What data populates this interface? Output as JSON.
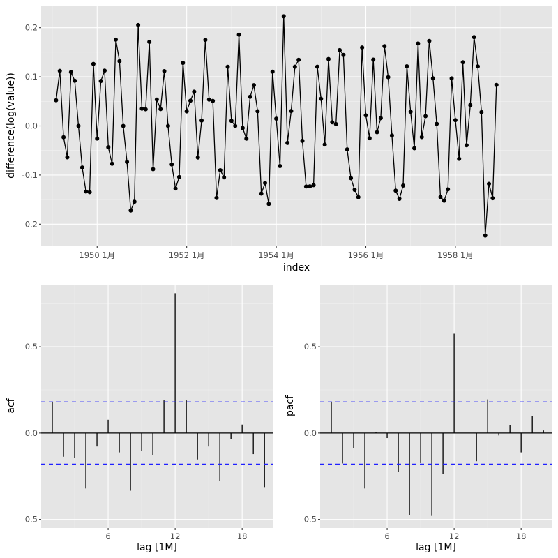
{
  "chart_data": [
    {
      "type": "line",
      "panel": "top",
      "title": "",
      "xlabel": "index",
      "ylabel": "difference(log(value))",
      "x_start": "1949-02",
      "x_end": "1958-12",
      "frequency": "monthly",
      "xlim": [
        "1948-10",
        "1960-03"
      ],
      "ylim": [
        -0.245,
        0.245
      ],
      "yticks": [
        -0.2,
        -0.1,
        0.0,
        0.1,
        0.2
      ],
      "ytick_labels": [
        "-0.2",
        "-0.1",
        "0.0",
        "0.1",
        "0.2"
      ],
      "xticks": [
        "1950-01",
        "1952-01",
        "1954-01",
        "1956-01",
        "1958-01"
      ],
      "xtick_labels": [
        "1950  1月",
        "1952  1月",
        "1954  1月",
        "1956  1月",
        "1958  1月"
      ],
      "grid": true,
      "markers": true,
      "values": [
        0.0522,
        0.1121,
        -0.023,
        -0.064,
        0.1095,
        0.0919,
        0.0,
        -0.0846,
        -0.1335,
        -0.1347,
        0.1263,
        -0.0258,
        0.0914,
        0.1125,
        -0.0435,
        -0.077,
        0.1756,
        0.1319,
        0.0,
        -0.0732,
        -0.1722,
        -0.1542,
        0.2054,
        0.0351,
        0.0339,
        0.1712,
        -0.088,
        0.0537,
        0.0343,
        0.1115,
        0.0,
        -0.0784,
        -0.1273,
        -0.104,
        0.1284,
        0.0297,
        0.0513,
        0.0697,
        -0.0642,
        0.011,
        0.175,
        0.0536,
        0.0509,
        -0.1466,
        -0.0901,
        -0.1048,
        0.1204,
        0.0103,
        0.0,
        0.1857,
        -0.0043,
        -0.0259,
        0.0593,
        0.0829,
        0.0299,
        -0.1377,
        -0.1162,
        -0.1589,
        0.1104,
        0.0148,
        -0.0817,
        0.2231,
        -0.0346,
        0.0304,
        0.1206,
        0.1345,
        -0.0303,
        -0.1233,
        -0.1231,
        -0.1205,
        0.1205,
        0.0552,
        -0.0379,
        0.1362,
        0.0075,
        0.0037,
        0.1542,
        0.1446,
        -0.0478,
        -0.1063,
        -0.1299,
        -0.1451,
        0.1596,
        0.0214,
        -0.025,
        0.1349,
        -0.0127,
        0.0159,
        0.1622,
        0.0992,
        -0.0196,
        -0.1318,
        -0.1485,
        -0.1215,
        0.1215,
        0.029,
        -0.0455,
        0.1678,
        -0.0227,
        0.0199,
        0.1729,
        0.097,
        0.0043,
        -0.1449,
        -0.1521,
        -0.129,
        0.0968,
        0.0118,
        -0.0669,
        0.1296,
        -0.0395,
        0.0422,
        0.1807,
        0.1212,
        0.0281,
        -0.2231,
        -0.1178,
        -0.1471,
        0.0835
      ]
    },
    {
      "type": "bar",
      "subtype": "acf-spikes",
      "panel": "bottom-left",
      "title": "",
      "xlabel": "lag [1M]",
      "ylabel": "acf",
      "lags": [
        1,
        2,
        3,
        4,
        5,
        6,
        7,
        8,
        9,
        10,
        11,
        12,
        13,
        14,
        15,
        16,
        17,
        18,
        19,
        20
      ],
      "values": [
        0.179,
        -0.137,
        -0.142,
        -0.321,
        -0.078,
        0.077,
        -0.112,
        -0.334,
        -0.105,
        -0.126,
        0.189,
        0.81,
        0.189,
        -0.153,
        -0.078,
        -0.277,
        -0.036,
        0.049,
        -0.122,
        -0.313
      ],
      "confidence_bound": 0.18,
      "xlim": [
        0.0,
        20.8
      ],
      "ylim": [
        -0.55,
        0.86
      ],
      "xticks": [
        6,
        12,
        18
      ],
      "xtick_labels": [
        "6",
        "12",
        "18"
      ],
      "yticks": [
        -0.5,
        0.0,
        0.5
      ],
      "ytick_labels": [
        "-0.5",
        "0.0",
        "0.5"
      ],
      "grid": true
    },
    {
      "type": "bar",
      "subtype": "pacf-spikes",
      "panel": "bottom-right",
      "title": "",
      "xlabel": "lag [1M]",
      "ylabel": "pacf",
      "lags": [
        1,
        2,
        3,
        4,
        5,
        6,
        7,
        8,
        9,
        10,
        11,
        12,
        13,
        14,
        15,
        16,
        17,
        18,
        19,
        20
      ],
      "values": [
        0.179,
        -0.176,
        -0.086,
        -0.321,
        0.005,
        -0.029,
        -0.224,
        -0.474,
        -0.174,
        -0.48,
        -0.235,
        0.575,
        0.001,
        -0.163,
        0.195,
        -0.014,
        0.048,
        -0.112,
        0.097,
        0.015
      ],
      "confidence_bound": 0.18,
      "xlim": [
        0.0,
        20.8
      ],
      "ylim": [
        -0.55,
        0.86
      ],
      "xticks": [
        6,
        12,
        18
      ],
      "xtick_labels": [
        "6",
        "12",
        "18"
      ],
      "yticks": [
        -0.5,
        0.0,
        0.5
      ],
      "ytick_labels": [
        "-0.5",
        "0.0",
        "0.5"
      ],
      "grid": true
    }
  ],
  "colors": {
    "panel_background": "#e5e5e5",
    "grid": "#ffffff",
    "series": "#000000",
    "confidence_line": "#2020ff"
  }
}
